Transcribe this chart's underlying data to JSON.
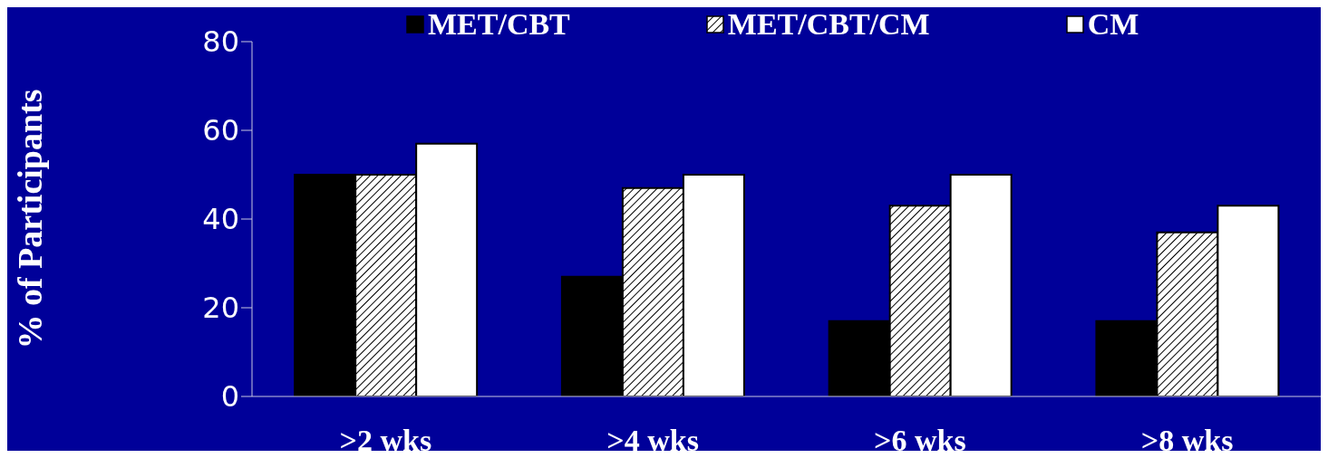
{
  "chart_data": {
    "type": "bar",
    "ylabel": "% of Participants",
    "categories": [
      ">2 wks",
      ">4 wks",
      ">6 wks",
      ">8 wks"
    ],
    "series": [
      {
        "name": "MET/CBT",
        "color": "#000000",
        "values": [
          50,
          27,
          17,
          17
        ]
      },
      {
        "name": "MET/CBT/CM",
        "color": "#000000",
        "values": [
          50,
          47,
          43,
          37
        ]
      },
      {
        "name": "CM",
        "color": "#ffffff",
        "values": [
          57,
          50,
          50,
          43
        ]
      }
    ],
    "ylim": [
      0,
      80
    ],
    "yticks": [
      0,
      20,
      40,
      60,
      80
    ],
    "grid": false,
    "legend": "top"
  }
}
